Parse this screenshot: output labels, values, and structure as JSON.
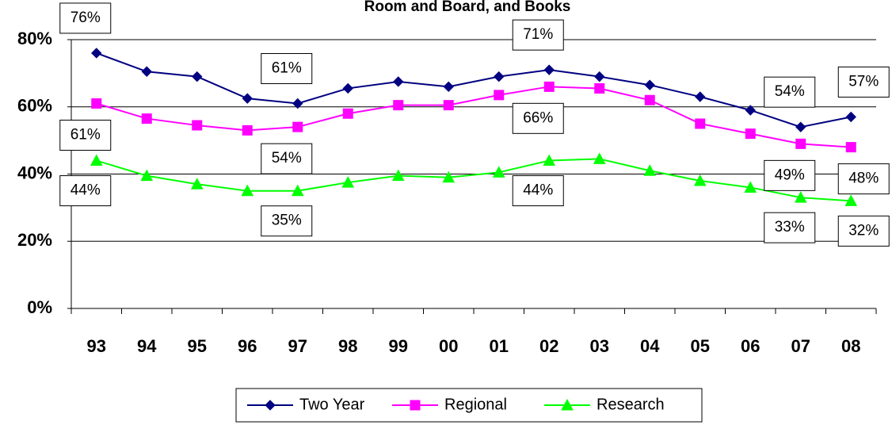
{
  "chart_data": {
    "type": "line",
    "title": "Room and Board, and Books",
    "categories": [
      "93",
      "94",
      "95",
      "96",
      "97",
      "98",
      "99",
      "00",
      "01",
      "02",
      "03",
      "04",
      "05",
      "06",
      "07",
      "08"
    ],
    "series": [
      {
        "name": "Two Year",
        "color": "#000080",
        "marker": "diamond",
        "values": [
          76,
          70.5,
          69,
          62.5,
          61,
          65.5,
          67.5,
          66,
          69,
          71,
          69,
          66.5,
          63,
          59,
          54,
          57
        ],
        "value_labels": [
          "76%",
          null,
          null,
          null,
          "61%",
          null,
          null,
          null,
          null,
          "71%",
          null,
          null,
          null,
          null,
          "54%",
          "57%"
        ]
      },
      {
        "name": "Regional",
        "color": "#FF00FF",
        "marker": "square",
        "values": [
          61,
          56.5,
          54.5,
          53,
          54,
          58,
          60.5,
          60.5,
          63.5,
          66,
          65.5,
          62,
          55,
          52,
          49,
          48
        ],
        "value_labels": [
          "61%",
          null,
          null,
          null,
          "54%",
          null,
          null,
          null,
          null,
          "66%",
          null,
          null,
          null,
          null,
          "49%",
          "48%"
        ]
      },
      {
        "name": "Research",
        "color": "#00FF00",
        "marker": "triangle",
        "values": [
          44,
          39.5,
          37,
          35,
          35,
          37.5,
          39.5,
          39,
          40.5,
          44,
          44.5,
          41,
          38,
          36,
          33,
          32
        ],
        "value_labels": [
          "44%",
          null,
          null,
          null,
          "35%",
          null,
          null,
          null,
          null,
          "44%",
          null,
          null,
          null,
          null,
          "33%",
          "32%"
        ]
      }
    ],
    "ylim": [
      0,
      80
    ],
    "yticks": [
      {
        "value": 0,
        "label": "0%"
      },
      {
        "value": 20,
        "label": "20%"
      },
      {
        "value": 40,
        "label": "40%"
      },
      {
        "value": 60,
        "label": "60%"
      },
      {
        "value": 80,
        "label": "80%"
      }
    ],
    "grid": true,
    "legend": "bottom"
  }
}
